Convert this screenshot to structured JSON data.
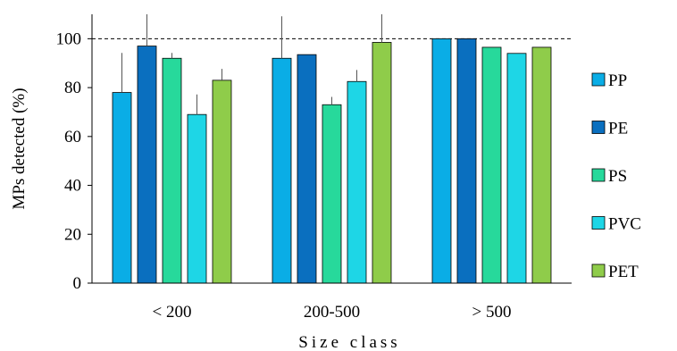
{
  "chart_data": {
    "type": "bar",
    "title": "",
    "xlabel": "Size class",
    "ylabel": "MPs detected (%)",
    "ylim": [
      0,
      110
    ],
    "yticks": [
      0,
      20,
      40,
      60,
      80,
      100
    ],
    "reference_line": 100,
    "categories": [
      "< 200",
      "200-500",
      "> 500"
    ],
    "series": [
      {
        "name": "PP",
        "color": "#0AADE6",
        "values": [
          78,
          92,
          100
        ],
        "error_upper": [
          94,
          109,
          null
        ]
      },
      {
        "name": "PE",
        "color": "#0A6FBF",
        "values": [
          97,
          93.5,
          100
        ],
        "error_upper": [
          110,
          null,
          null
        ]
      },
      {
        "name": "PS",
        "color": "#27D99B",
        "values": [
          92,
          73,
          96.5
        ],
        "error_upper": [
          94,
          76,
          null
        ]
      },
      {
        "name": "PVC",
        "color": "#1ED6E6",
        "values": [
          69,
          82.5,
          94
        ],
        "error_upper": [
          77,
          87,
          null
        ]
      },
      {
        "name": "PET",
        "color": "#8FCC4A",
        "values": [
          83,
          98.5,
          96.5
        ],
        "error_upper": [
          87.5,
          110,
          null
        ]
      }
    ],
    "legend_position": "right",
    "grid": false
  }
}
